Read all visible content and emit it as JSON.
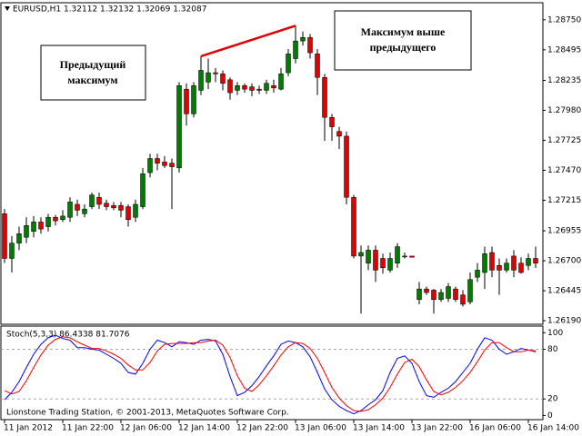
{
  "chart_data": [
    {
      "type": "candlestick",
      "title": "EURUSD,H1  1.32112 1.32132 1.32069 1.32087",
      "up_color": "#007a00",
      "down_color": "#e00000",
      "wick_color": "#000000",
      "xlim": [
        -0.5,
        74
      ],
      "ylim": [
        1.26175,
        1.2888
      ],
      "yticks": [
        {
          "value": 1.2875,
          "label": "1.28750"
        },
        {
          "value": 1.28495,
          "label": "1.28495"
        },
        {
          "value": 1.28235,
          "label": "1.28235"
        },
        {
          "value": 1.2798,
          "label": "1.27980"
        },
        {
          "value": 1.27725,
          "label": "1.27725"
        },
        {
          "value": 1.2747,
          "label": "1.27470"
        },
        {
          "value": 1.27215,
          "label": "1.27215"
        },
        {
          "value": 1.26955,
          "label": "1.26955"
        },
        {
          "value": 1.267,
          "label": "1.26700"
        },
        {
          "value": 1.26445,
          "label": "1.26445"
        },
        {
          "value": 1.2619,
          "label": "1.26190"
        }
      ],
      "open": [
        1.271,
        1.2672,
        1.2685,
        1.269,
        1.2695,
        1.2703,
        1.2699,
        1.2707,
        1.2705,
        1.2707,
        1.2718,
        1.271,
        1.2716,
        1.2724,
        1.2719,
        1.2717,
        1.2717,
        1.2716,
        1.2707,
        1.2716,
        1.2745,
        1.2757,
        1.2754,
        1.2753,
        1.2749,
        1.2816,
        1.2795,
        1.2815,
        1.2822,
        1.283,
        1.2829,
        1.2824,
        1.2815,
        1.2819,
        1.2818,
        1.2816,
        1.2815,
        1.2819,
        1.2816,
        1.283,
        1.2842,
        1.2857,
        1.286,
        1.2846,
        1.2826,
        1.2792,
        1.278,
        1.2776,
        1.2724,
        1.2674,
        1.2668,
        1.2679,
        1.2672,
        1.2662,
        1.2668,
        1.2674,
        1.2674,
        1.2637,
        1.2646,
        1.2645,
        1.2637,
        1.2638,
        1.2646,
        1.2641,
        1.2635,
        1.2656,
        1.266,
        1.2677,
        1.2666,
        1.2662,
        1.2674,
        1.2668,
        1.2666,
        1.2672
      ],
      "high": [
        1.2714,
        1.2691,
        1.2699,
        1.2707,
        1.2708,
        1.2707,
        1.271,
        1.2709,
        1.2713,
        1.2724,
        1.2722,
        1.2718,
        1.2728,
        1.2728,
        1.2722,
        1.272,
        1.272,
        1.2718,
        1.2722,
        1.2749,
        1.2761,
        1.2761,
        1.2759,
        1.2757,
        1.2822,
        1.2821,
        1.2822,
        1.2844,
        1.2842,
        1.2834,
        1.2832,
        1.2826,
        1.2822,
        1.2821,
        1.2821,
        1.2819,
        1.2824,
        1.2824,
        1.2834,
        1.285,
        1.287,
        1.2865,
        1.2863,
        1.285,
        1.2829,
        1.2795,
        1.2784,
        1.278,
        1.2726,
        1.2683,
        1.2683,
        1.2683,
        1.2676,
        1.2677,
        1.2685,
        1.2677,
        1.2674,
        1.2652,
        1.2648,
        1.2646,
        1.2646,
        1.2651,
        1.2648,
        1.2645,
        1.266,
        1.2668,
        1.2682,
        1.2682,
        1.2672,
        1.2672,
        1.2679,
        1.2673,
        1.2676,
        1.2682
      ],
      "low": [
        1.2668,
        1.266,
        1.2679,
        1.2685,
        1.269,
        1.2693,
        1.2695,
        1.27,
        1.2703,
        1.2703,
        1.2708,
        1.2707,
        1.2714,
        1.2714,
        1.2713,
        1.2713,
        1.2707,
        1.2699,
        1.2703,
        1.2714,
        1.2741,
        1.2747,
        1.2749,
        1.2714,
        1.2745,
        1.2785,
        1.2792,
        1.2811,
        1.2816,
        1.2822,
        1.2815,
        1.2807,
        1.2811,
        1.2813,
        1.281,
        1.2812,
        1.2812,
        1.2813,
        1.2815,
        1.2827,
        1.2838,
        1.2853,
        1.2842,
        1.2811,
        1.2772,
        1.2772,
        1.2765,
        1.2718,
        1.2672,
        1.2625,
        1.2662,
        1.2652,
        1.2659,
        1.266,
        1.2664,
        1.2672,
        1.2673,
        1.2633,
        1.2641,
        1.2625,
        1.2635,
        1.2635,
        1.2635,
        1.2631,
        1.2633,
        1.2652,
        1.2646,
        1.2656,
        1.2641,
        1.266,
        1.2656,
        1.2659,
        1.2662,
        1.2664
      ],
      "close": [
        1.2672,
        1.2685,
        1.2693,
        1.27,
        1.2703,
        1.2697,
        1.2707,
        1.2704,
        1.2708,
        1.272,
        1.2713,
        1.2714,
        1.2726,
        1.2718,
        1.2716,
        1.2715,
        1.2713,
        1.2705,
        1.2718,
        1.2744,
        1.2757,
        1.2753,
        1.2751,
        1.275,
        1.2819,
        1.2795,
        1.2819,
        1.2832,
        1.283,
        1.2829,
        1.2821,
        1.2813,
        1.2819,
        1.2816,
        1.2815,
        1.2815,
        1.2821,
        1.2817,
        1.2829,
        1.2846,
        1.2857,
        1.286,
        1.2847,
        1.2826,
        1.2792,
        1.2784,
        1.2776,
        1.2724,
        1.2674,
        1.2677,
        1.2679,
        1.2662,
        1.2664,
        1.2672,
        1.2682,
        1.2674,
        1.2673,
        1.2646,
        1.2643,
        1.2637,
        1.2643,
        1.2648,
        1.2637,
        1.2633,
        1.2654,
        1.2662,
        1.2676,
        1.2662,
        1.2662,
        1.2668,
        1.2662,
        1.266,
        1.2672,
        1.2668
      ],
      "trend_line": {
        "x": [
          27,
          40
        ],
        "values": [
          1.2844,
          1.287
        ],
        "color": "#e00000"
      },
      "annotations": [
        {
          "lines": [
            "Предыдущий",
            "максимум"
          ]
        },
        {
          "lines": [
            "Максимум выше",
            "предыдущего"
          ]
        }
      ]
    },
    {
      "type": "line",
      "title": "Stoch(5,3,3) 86.4338 81.7076",
      "xlim": [
        -0.5,
        74
      ],
      "ylim": [
        -5,
        108
      ],
      "yticks": [
        100,
        80,
        20,
        0
      ],
      "levels": [
        80,
        20
      ],
      "series": [
        {
          "color": "#0000ff",
          "values": [
            19,
            28,
            41,
            58,
            74,
            86,
            94,
            97,
            93,
            91,
            82,
            82,
            80,
            79,
            74,
            69,
            63,
            52,
            50,
            63,
            80,
            91,
            88,
            83,
            89,
            88,
            86,
            91,
            92,
            90,
            74,
            47,
            24,
            28,
            36,
            47,
            60,
            72,
            86,
            90,
            88,
            83,
            71,
            52,
            32,
            19,
            11,
            6,
            2,
            6,
            13,
            19,
            30,
            52,
            69,
            72,
            63,
            41,
            24,
            22,
            28,
            33,
            41,
            52,
            63,
            80,
            94,
            91,
            80,
            74,
            77,
            81,
            79,
            77
          ]
        },
        {
          "color": "#ff0000",
          "values": [
            30,
            26,
            29,
            42,
            58,
            73,
            85,
            92,
            95,
            94,
            89,
            85,
            81,
            81,
            78,
            74,
            69,
            61,
            55,
            55,
            64,
            78,
            86,
            87,
            87,
            87,
            88,
            88,
            90,
            91,
            85,
            70,
            48,
            33,
            29,
            37,
            48,
            60,
            73,
            83,
            88,
            87,
            81,
            69,
            52,
            34,
            21,
            12,
            6,
            5,
            7,
            13,
            21,
            34,
            50,
            64,
            68,
            59,
            43,
            29,
            25,
            28,
            34,
            42,
            52,
            65,
            79,
            88,
            88,
            82,
            77,
            77,
            79,
            78
          ]
        }
      ],
      "xticks": [
        {
          "value": 0,
          "label": "11 Jan 2012"
        },
        {
          "value": 8,
          "label": "11 Jan 22:00"
        },
        {
          "value": 16,
          "label": "12 Jan 06:00"
        },
        {
          "value": 24,
          "label": "12 Jan 14:00"
        },
        {
          "value": 32,
          "label": "12 Jan 22:00"
        },
        {
          "value": 40,
          "label": "13 Jan 06:00"
        },
        {
          "value": 48,
          "label": "13 Jan 14:00"
        },
        {
          "value": 56,
          "label": "13 Jan 22:00"
        },
        {
          "value": 64,
          "label": "16 Jan 06:00"
        },
        {
          "value": 72,
          "label": "16 Jan 14:00"
        }
      ],
      "note": "Lionstone Trading Station, © 2001-2013, MetaQuotes Software Corp."
    }
  ]
}
